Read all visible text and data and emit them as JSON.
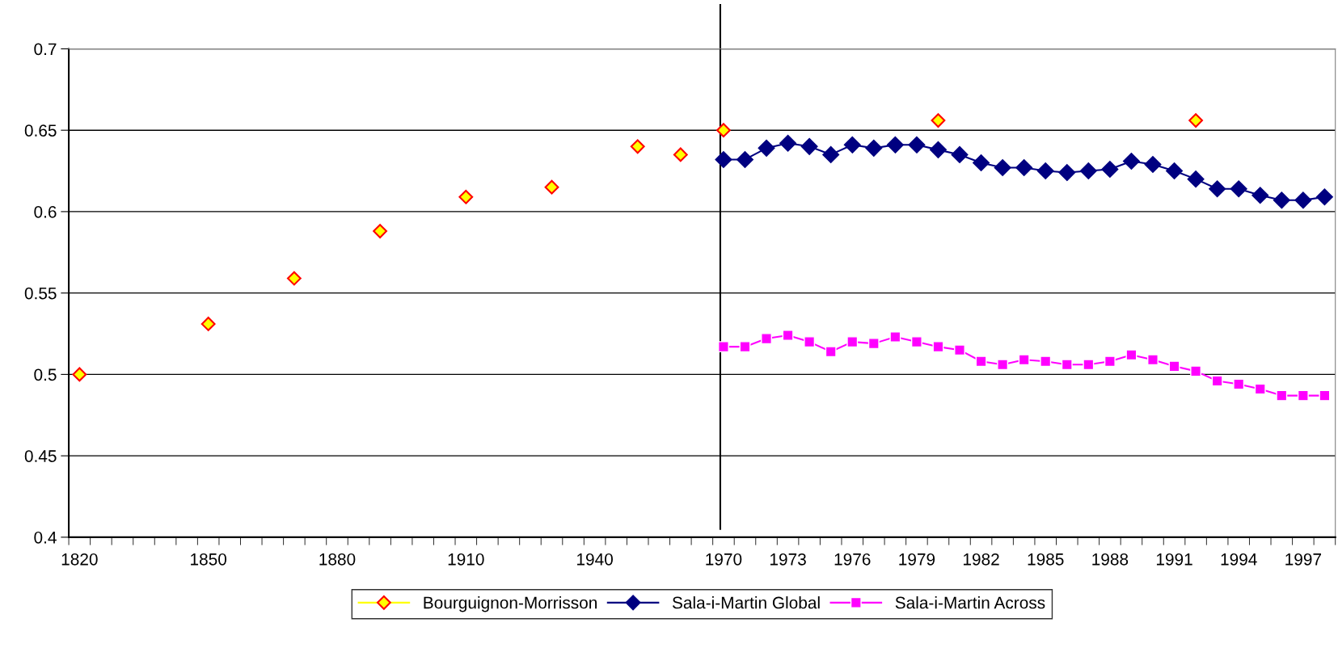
{
  "chart_data": {
    "type": "line",
    "categories": [
      "1820",
      null,
      null,
      null,
      null,
      null,
      "1850",
      null,
      null,
      null,
      null,
      null,
      "1880",
      null,
      null,
      null,
      null,
      null,
      "1910",
      null,
      null,
      null,
      null,
      null,
      "1940",
      null,
      null,
      null,
      null,
      null,
      "1970",
      null,
      null,
      "1973",
      null,
      null,
      "1976",
      null,
      null,
      "1979",
      null,
      null,
      "1982",
      null,
      null,
      "1985",
      null,
      null,
      "1988",
      null,
      null,
      "1991",
      null,
      null,
      "1994",
      null,
      null,
      "1997",
      null
    ],
    "series": [
      {
        "name": "Bourguignon-Morrisson",
        "type": "scatter",
        "color": "#ffff00",
        "marker": "diamond",
        "values": [
          0.5,
          null,
          null,
          null,
          null,
          null,
          0.531,
          null,
          null,
          null,
          0.559,
          null,
          null,
          null,
          0.588,
          null,
          null,
          null,
          0.609,
          null,
          null,
          null,
          0.615,
          null,
          null,
          null,
          0.64,
          null,
          0.635,
          null,
          0.65,
          null,
          null,
          null,
          null,
          null,
          null,
          null,
          null,
          null,
          0.656,
          null,
          null,
          null,
          null,
          null,
          null,
          null,
          null,
          null,
          null,
          null,
          0.656,
          null,
          null,
          null,
          null,
          null,
          null
        ]
      },
      {
        "name": "Sala-i-Martin Global",
        "color": "#000080",
        "marker": "diamond",
        "values": [
          null,
          null,
          null,
          null,
          null,
          null,
          null,
          null,
          null,
          null,
          null,
          null,
          null,
          null,
          null,
          null,
          null,
          null,
          null,
          null,
          null,
          null,
          null,
          null,
          null,
          null,
          null,
          null,
          null,
          null,
          0.632,
          0.632,
          0.639,
          0.642,
          0.64,
          0.635,
          0.641,
          0.639,
          0.641,
          0.641,
          0.638,
          0.635,
          0.63,
          0.627,
          0.627,
          0.625,
          0.624,
          0.625,
          0.626,
          0.631,
          0.629,
          0.625,
          0.62,
          0.614,
          0.614,
          0.61,
          0.607,
          0.607,
          0.609
        ]
      },
      {
        "name": "Sala-i-Martin Across",
        "color": "#ff00ff",
        "marker": "square",
        "values": [
          null,
          null,
          null,
          null,
          null,
          null,
          null,
          null,
          null,
          null,
          null,
          null,
          null,
          null,
          null,
          null,
          null,
          null,
          null,
          null,
          null,
          null,
          null,
          null,
          null,
          null,
          null,
          null,
          null,
          null,
          0.517,
          0.517,
          0.522,
          0.524,
          0.52,
          0.514,
          0.52,
          0.519,
          0.523,
          0.52,
          0.517,
          0.515,
          0.508,
          0.506,
          0.509,
          0.508,
          0.506,
          0.506,
          0.508,
          0.512,
          0.509,
          0.505,
          0.502,
          0.496,
          0.494,
          0.491,
          0.487,
          0.487,
          0.487
        ]
      }
    ],
    "ylim": [
      0.4,
      0.7
    ],
    "yticks": [
      0.4,
      0.45,
      0.5,
      0.55,
      0.6,
      0.65,
      0.7
    ],
    "ref_lines": [
      {
        "axis": "x",
        "value": "1970",
        "color": "#000000"
      }
    ],
    "grid": "y",
    "legend": "bottom",
    "line_style": "solid"
  }
}
